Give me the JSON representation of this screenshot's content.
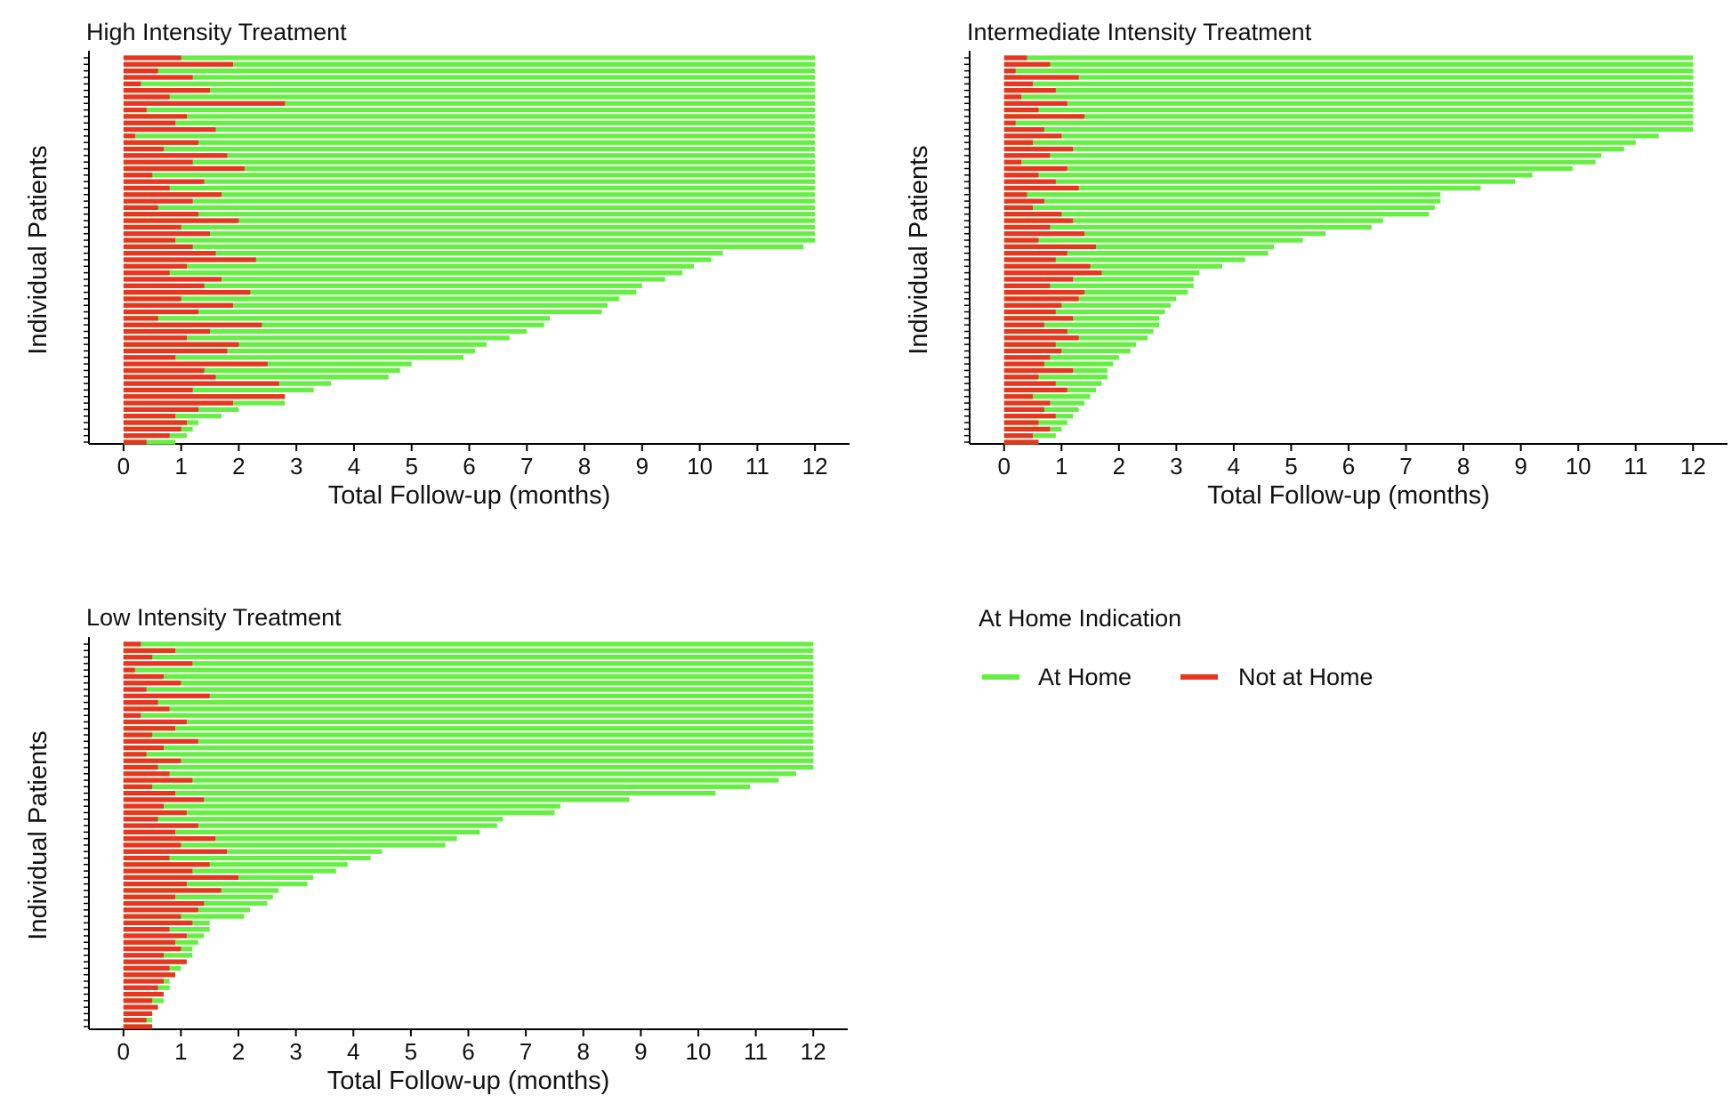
{
  "chart_data": [
    {
      "type": "swimmer",
      "title": "High Intensity Treatment",
      "xlabel": "Total Follow-up (months)",
      "ylabel": "Individual Patients",
      "xlim": [
        -0.6,
        12.6
      ],
      "xticks": [
        0,
        1,
        2,
        3,
        4,
        5,
        6,
        7,
        8,
        9,
        10,
        11,
        12
      ],
      "series": [
        {
          "values": [
            12,
            12,
            12,
            12,
            12,
            12,
            12,
            12,
            12,
            12,
            12,
            12,
            12,
            12,
            12,
            12,
            12,
            12,
            12,
            12,
            12,
            12,
            12,
            12,
            12,
            12,
            12,
            12,
            12,
            11.8,
            10.4,
            10.2,
            9.9,
            9.7,
            9.4,
            9.0,
            8.9,
            8.6,
            8.4,
            8.3,
            7.4,
            7.3,
            7.0,
            6.7,
            6.3,
            6.1,
            5.9,
            5.0,
            4.8,
            4.6,
            3.6,
            3.3,
            2.8,
            2.8,
            2.0,
            1.7,
            1.3,
            1.2,
            1.1,
            0.9
          ]
        },
        {
          "values": [
            1.0,
            1.9,
            0.6,
            1.2,
            0.3,
            1.5,
            0.8,
            2.8,
            0.4,
            1.1,
            0.9,
            1.6,
            0.2,
            1.3,
            0.7,
            1.8,
            1.2,
            2.1,
            0.5,
            1.4,
            0.8,
            1.7,
            1.2,
            0.6,
            1.3,
            2.0,
            1.0,
            1.5,
            0.9,
            1.2,
            1.6,
            2.3,
            1.1,
            0.8,
            1.7,
            1.4,
            2.2,
            1.0,
            1.9,
            1.3,
            0.6,
            2.4,
            1.5,
            1.1,
            2.0,
            1.8,
            0.9,
            2.5,
            1.4,
            1.6,
            2.7,
            1.2,
            2.8,
            1.9,
            1.3,
            0.9,
            1.1,
            1.0,
            0.8,
            0.4
          ]
        }
      ]
    },
    {
      "type": "swimmer",
      "title": "Intermediate Intensity Treatment",
      "xlabel": "Total Follow-up (months)",
      "ylabel": "Individual Patients",
      "xlim": [
        -0.6,
        12.6
      ],
      "xticks": [
        0,
        1,
        2,
        3,
        4,
        5,
        6,
        7,
        8,
        9,
        10,
        11,
        12
      ],
      "series": [
        {
          "values": [
            12,
            12,
            12,
            12,
            12,
            12,
            12,
            12,
            12,
            12,
            12,
            12,
            11.4,
            11.0,
            10.8,
            10.4,
            10.3,
            9.9,
            9.2,
            8.9,
            8.3,
            7.6,
            7.6,
            7.5,
            7.4,
            6.6,
            6.4,
            5.6,
            5.2,
            4.7,
            4.6,
            4.2,
            3.8,
            3.4,
            3.3,
            3.3,
            3.2,
            3.0,
            2.9,
            2.8,
            2.7,
            2.7,
            2.6,
            2.5,
            2.3,
            2.2,
            2.0,
            1.9,
            1.8,
            1.8,
            1.7,
            1.6,
            1.5,
            1.4,
            1.3,
            1.2,
            1.1,
            1.0,
            0.9,
            0.6
          ]
        },
        {
          "values": [
            0.4,
            0.8,
            0.2,
            1.3,
            0.5,
            0.9,
            0.3,
            1.1,
            0.6,
            1.4,
            0.2,
            0.7,
            1.0,
            0.5,
            1.2,
            0.8,
            0.3,
            1.1,
            0.6,
            0.9,
            1.3,
            0.4,
            0.7,
            0.5,
            1.0,
            1.2,
            0.8,
            1.4,
            0.6,
            1.6,
            1.1,
            0.9,
            1.5,
            1.7,
            1.2,
            0.8,
            1.4,
            1.3,
            1.0,
            0.9,
            1.2,
            0.7,
            1.1,
            1.3,
            0.9,
            1.0,
            0.8,
            0.7,
            1.2,
            0.6,
            0.9,
            1.1,
            0.5,
            0.8,
            0.7,
            0.9,
            0.6,
            0.8,
            0.5,
            0.6
          ]
        }
      ]
    },
    {
      "type": "swimmer",
      "title": "Low Intensity Treatment",
      "xlabel": "Total Follow-up (months)",
      "ylabel": "Individual Patients",
      "xlim": [
        -0.6,
        12.6
      ],
      "xticks": [
        0,
        1,
        2,
        3,
        4,
        5,
        6,
        7,
        8,
        9,
        10,
        11,
        12
      ],
      "series": [
        {
          "values": [
            12,
            12,
            12,
            12,
            12,
            12,
            12,
            12,
            12,
            12,
            12,
            12,
            12,
            12,
            12,
            12,
            12,
            12,
            12,
            12,
            11.7,
            11.4,
            10.9,
            10.3,
            8.8,
            7.6,
            7.5,
            6.6,
            6.5,
            6.2,
            5.8,
            5.6,
            4.5,
            4.3,
            3.9,
            3.7,
            3.3,
            3.2,
            2.7,
            2.6,
            2.5,
            2.2,
            2.1,
            1.5,
            1.5,
            1.4,
            1.3,
            1.2,
            1.2,
            1.1,
            1.0,
            0.9,
            0.8,
            0.8,
            0.7,
            0.7,
            0.6,
            0.5,
            0.5,
            0.5
          ]
        },
        {
          "values": [
            0.3,
            0.9,
            0.5,
            1.2,
            0.2,
            0.7,
            1.0,
            0.4,
            1.5,
            0.6,
            0.8,
            0.3,
            1.1,
            0.9,
            0.5,
            1.3,
            0.7,
            0.4,
            1.0,
            0.6,
            0.8,
            1.2,
            0.5,
            0.9,
            1.4,
            0.7,
            1.1,
            0.6,
            1.3,
            0.9,
            1.6,
            1.0,
            1.8,
            0.8,
            1.5,
            1.2,
            2.0,
            1.1,
            1.7,
            0.9,
            1.4,
            1.3,
            1.0,
            1.2,
            0.8,
            1.1,
            0.9,
            1.0,
            0.7,
            1.1,
            0.8,
            0.9,
            0.7,
            0.6,
            0.7,
            0.5,
            0.6,
            0.5,
            0.4,
            0.5
          ]
        }
      ]
    }
  ],
  "legend": {
    "title": "At Home Indication",
    "entries": [
      {
        "name": "At Home",
        "color": "#66ee44"
      },
      {
        "name": "Not at Home",
        "color": "#e8351f"
      }
    ]
  }
}
